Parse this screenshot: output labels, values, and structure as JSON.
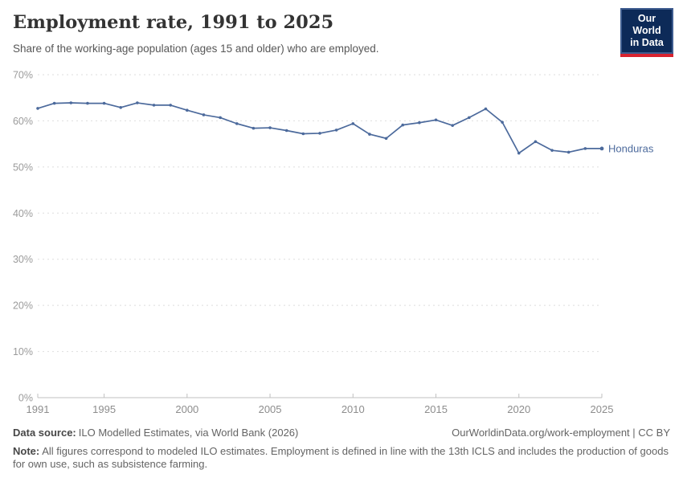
{
  "header": {
    "title": "Employment rate, 1991 to 2025",
    "subtitle": "Share of the working-age population (ages 15 and older) who are employed.",
    "logo": {
      "line1": "Our World",
      "line2": "in Data"
    }
  },
  "chart_data": {
    "type": "line",
    "title": "Employment rate, 1991 to 2025",
    "xlabel": "",
    "ylabel": "",
    "xlim": [
      1991,
      2025
    ],
    "ylim": [
      0,
      70
    ],
    "grid": "horizontal-dashed",
    "legend_position": "end-of-line-label",
    "x_ticks": [
      1991,
      1995,
      2000,
      2005,
      2010,
      2015,
      2020,
      2025
    ],
    "y_ticks": [
      0,
      10,
      20,
      30,
      40,
      50,
      60,
      70
    ],
    "y_tick_suffix": "%",
    "series": [
      {
        "name": "Honduras",
        "color": "#4c6a9c",
        "x": [
          1991,
          1992,
          1993,
          1994,
          1995,
          1996,
          1997,
          1998,
          1999,
          2000,
          2001,
          2002,
          2003,
          2004,
          2005,
          2006,
          2007,
          2008,
          2009,
          2010,
          2011,
          2012,
          2013,
          2014,
          2015,
          2016,
          2017,
          2018,
          2019,
          2020,
          2021,
          2022,
          2023,
          2024,
          2025
        ],
        "values": [
          62.7,
          63.8,
          63.9,
          63.8,
          63.8,
          62.9,
          63.9,
          63.4,
          63.4,
          62.3,
          61.3,
          60.7,
          59.4,
          58.4,
          58.5,
          57.9,
          57.2,
          57.3,
          58.0,
          59.4,
          57.1,
          56.2,
          59.1,
          59.6,
          60.2,
          59.0,
          60.7,
          62.6,
          59.7,
          53.0,
          55.5,
          53.6,
          53.2,
          54.0,
          54.0
        ]
      }
    ],
    "colors": {
      "line": "#4c6a9c",
      "gridline": "#dedede",
      "axis": "#c0c0c0",
      "tick_label": "#9b9b9b"
    }
  },
  "footer": {
    "data_source_label": "Data source:",
    "data_source": "ILO Modelled Estimates, via World Bank (2026)",
    "attribution": "OurWorldinData.org/work-employment | CC BY",
    "note_label": "Note:",
    "note_text": "All figures correspond to modeled ILO estimates. Employment is defined in line with the 13th ICLS and includes the production of goods for own use, such as subsistence farming."
  }
}
